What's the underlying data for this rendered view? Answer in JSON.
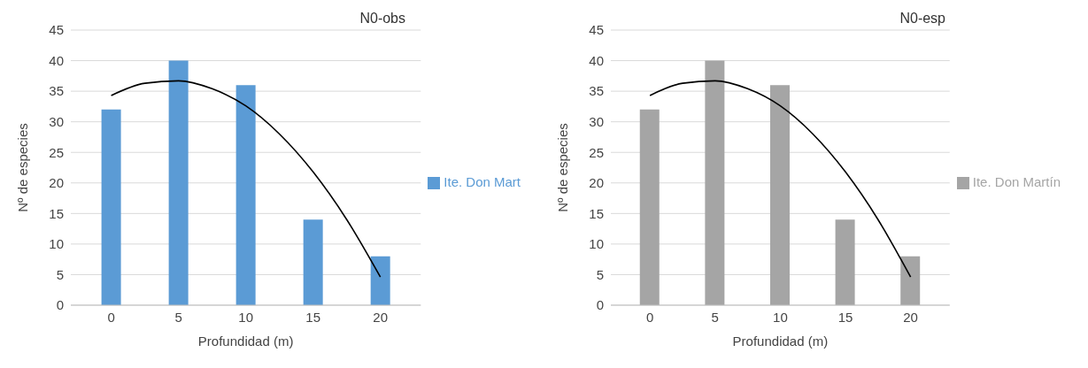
{
  "chart_data": [
    {
      "type": "bar",
      "title": "N0-obs",
      "xlabel": "Profundidad (m)",
      "ylabel": "Nº de especies",
      "x": [
        0,
        5,
        10,
        15,
        20
      ],
      "xlim": [
        -3,
        23
      ],
      "xticks": [
        0,
        5,
        10,
        15,
        20
      ],
      "ylim": [
        0,
        45
      ],
      "yticks": [
        0,
        5,
        10,
        15,
        20,
        25,
        30,
        35,
        40,
        45
      ],
      "grid": "y",
      "legend": "right",
      "marker": "none",
      "series": [
        {
          "name": "Ite. Don Mart",
          "color": "#5b9bd5",
          "values": [
            32,
            40,
            36,
            14,
            8
          ]
        },
        {
          "type": "line",
          "color": "#000000",
          "x": [
            0,
            2.5,
            5,
            7.5,
            10,
            12.5,
            15,
            17.5,
            20
          ],
          "values": [
            34.3,
            36.3,
            36.7,
            35.4,
            32.6,
            28,
            21.8,
            14,
            4.6
          ]
        }
      ]
    },
    {
      "type": "bar",
      "title": "N0-esp",
      "xlabel": "Profundidad (m)",
      "ylabel": "Nº de especies",
      "x": [
        0,
        5,
        10,
        15,
        20
      ],
      "xlim": [
        -3,
        23
      ],
      "xticks": [
        0,
        5,
        10,
        15,
        20
      ],
      "ylim": [
        0,
        45
      ],
      "yticks": [
        0,
        5,
        10,
        15,
        20,
        25,
        30,
        35,
        40,
        45
      ],
      "grid": "y",
      "legend": "right",
      "marker": "none",
      "series": [
        {
          "name": "Ite. Don Martín",
          "color": "#a5a5a5",
          "values": [
            32,
            40,
            36,
            14,
            8
          ]
        },
        {
          "type": "line",
          "color": "#000000",
          "x": [
            0,
            2.5,
            5,
            7.5,
            10,
            12.5,
            15,
            17.5,
            20
          ],
          "values": [
            34.3,
            36.3,
            36.7,
            35.4,
            32.6,
            28,
            21.8,
            14,
            4.6
          ]
        }
      ]
    }
  ]
}
